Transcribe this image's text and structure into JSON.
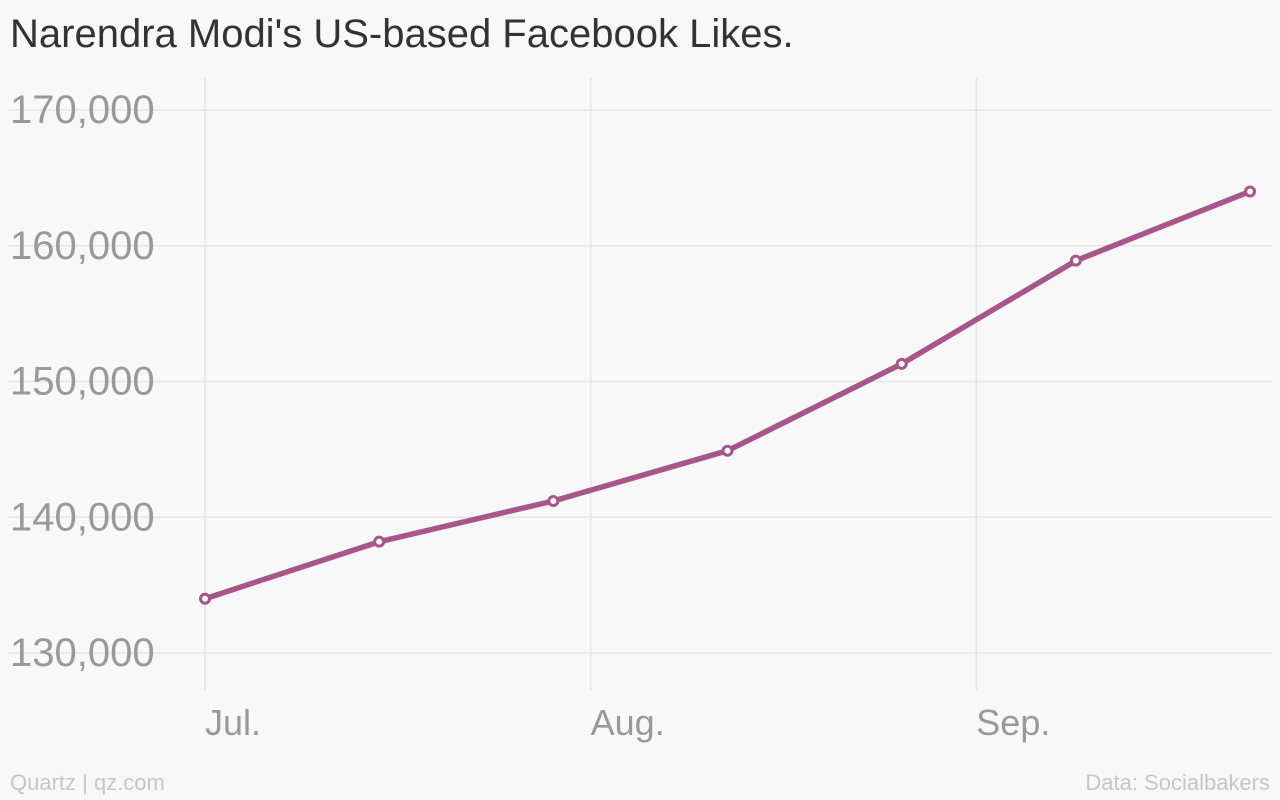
{
  "chart_data": {
    "type": "line",
    "title": "Narendra Modi's US-based Facebook Likes.",
    "x_tick_labels": [
      "Jul.",
      "Aug.",
      "Sep."
    ],
    "y_tick_labels": [
      "130,000",
      "140,000",
      "150,000",
      "160,000",
      "170,000"
    ],
    "ylim": [
      130000,
      170000
    ],
    "y_ticks": [
      130000,
      140000,
      150000,
      160000,
      170000
    ],
    "x_ticks": [
      "2014-07-01",
      "2014-08-01",
      "2014-09-01"
    ],
    "xlim": [
      "2014-07-01",
      "2014-09-23"
    ],
    "grid": true,
    "series": [
      {
        "color": "#a8568a",
        "x": [
          "2014-07-01",
          "2014-07-15",
          "2014-07-29",
          "2014-08-12",
          "2014-08-26",
          "2014-09-09",
          "2014-09-23"
        ],
        "values": [
          134000,
          138200,
          141200,
          144900,
          151300,
          158900,
          164000
        ]
      }
    ]
  },
  "footer": {
    "source_left": "Quartz | qz.com",
    "source_right": "Data: Socialbakers"
  }
}
